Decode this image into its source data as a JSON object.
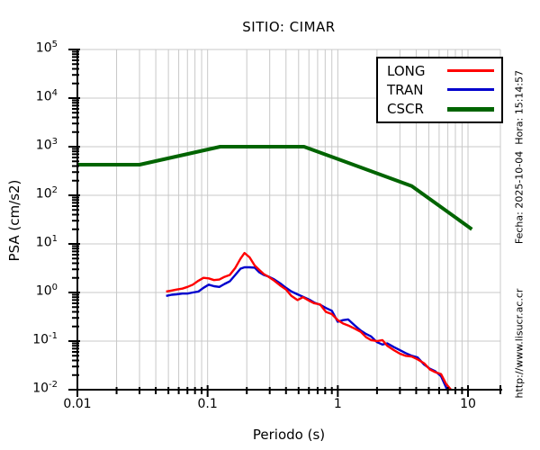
{
  "side_texts": {
    "fecha": "Fecha: 2025-10-04  Hora: 15:14:57",
    "url": "http://www.lisucr.ac.cr"
  },
  "colors": {
    "long": "#ff0000",
    "tran": "#0000cd",
    "cscr": "#006400",
    "grid": "#c8c8c8",
    "axis": "#000000"
  },
  "chart_data": {
    "type": "line",
    "title": "SITIO: CIMAR",
    "xlabel": "Periodo (s)",
    "ylabel": "PSA (cm/s2)",
    "xscale": "log",
    "yscale": "log",
    "xlim": [
      0.01,
      17.8
    ],
    "ylim": [
      0.01,
      100000
    ],
    "x_tick_values": [
      0.01,
      0.1,
      1,
      10
    ],
    "x_tick_labels": [
      "0.01",
      "0.1",
      "1",
      "10"
    ],
    "y_tick_exponents": [
      5,
      4,
      3,
      2,
      1,
      0,
      -1,
      -2
    ],
    "grid": true,
    "legend_position": "top-right",
    "series": [
      {
        "name": "LONG",
        "color": "#ff0000",
        "width": 2.4,
        "points": [
          [
            0.048,
            1.05
          ],
          [
            0.053,
            1.1
          ],
          [
            0.058,
            1.15
          ],
          [
            0.064,
            1.2
          ],
          [
            0.07,
            1.3
          ],
          [
            0.077,
            1.45
          ],
          [
            0.085,
            1.75
          ],
          [
            0.093,
            2.0
          ],
          [
            0.102,
            1.95
          ],
          [
            0.112,
            1.8
          ],
          [
            0.123,
            1.85
          ],
          [
            0.135,
            2.1
          ],
          [
            0.148,
            2.3
          ],
          [
            0.163,
            3.2
          ],
          [
            0.179,
            5.0
          ],
          [
            0.192,
            6.5
          ],
          [
            0.21,
            5.3
          ],
          [
            0.23,
            3.6
          ],
          [
            0.25,
            2.9
          ],
          [
            0.27,
            2.4
          ],
          [
            0.29,
            2.15
          ],
          [
            0.32,
            1.8
          ],
          [
            0.36,
            1.4
          ],
          [
            0.4,
            1.15
          ],
          [
            0.44,
            0.85
          ],
          [
            0.49,
            0.7
          ],
          [
            0.54,
            0.8
          ],
          [
            0.6,
            0.68
          ],
          [
            0.66,
            0.6
          ],
          [
            0.73,
            0.57
          ],
          [
            0.81,
            0.4
          ],
          [
            0.9,
            0.36
          ],
          [
            1.0,
            0.27
          ],
          [
            1.1,
            0.23
          ],
          [
            1.2,
            0.21
          ],
          [
            1.35,
            0.18
          ],
          [
            1.5,
            0.155
          ],
          [
            1.65,
            0.12
          ],
          [
            1.8,
            0.105
          ],
          [
            2.0,
            0.1
          ],
          [
            2.2,
            0.105
          ],
          [
            2.4,
            0.08
          ],
          [
            2.7,
            0.065
          ],
          [
            3.0,
            0.055
          ],
          [
            3.3,
            0.05
          ],
          [
            3.7,
            0.048
          ],
          [
            4.1,
            0.042
          ],
          [
            4.6,
            0.035
          ],
          [
            5.1,
            0.026
          ],
          [
            5.6,
            0.023
          ],
          [
            6.2,
            0.021
          ],
          [
            6.8,
            0.013
          ],
          [
            7.3,
            0.0105
          ],
          [
            7.6,
            0.0092
          ]
        ]
      },
      {
        "name": "TRAN",
        "color": "#0000cd",
        "width": 2.4,
        "points": [
          [
            0.048,
            0.85
          ],
          [
            0.053,
            0.9
          ],
          [
            0.058,
            0.92
          ],
          [
            0.064,
            0.95
          ],
          [
            0.07,
            0.95
          ],
          [
            0.077,
            1.0
          ],
          [
            0.085,
            1.05
          ],
          [
            0.093,
            1.25
          ],
          [
            0.102,
            1.45
          ],
          [
            0.112,
            1.35
          ],
          [
            0.123,
            1.3
          ],
          [
            0.135,
            1.5
          ],
          [
            0.148,
            1.7
          ],
          [
            0.163,
            2.3
          ],
          [
            0.179,
            3.1
          ],
          [
            0.192,
            3.3
          ],
          [
            0.21,
            3.3
          ],
          [
            0.23,
            3.25
          ],
          [
            0.25,
            2.6
          ],
          [
            0.27,
            2.3
          ],
          [
            0.29,
            2.15
          ],
          [
            0.32,
            1.9
          ],
          [
            0.36,
            1.55
          ],
          [
            0.4,
            1.25
          ],
          [
            0.44,
            1.05
          ],
          [
            0.49,
            0.92
          ],
          [
            0.54,
            0.82
          ],
          [
            0.6,
            0.72
          ],
          [
            0.66,
            0.62
          ],
          [
            0.73,
            0.56
          ],
          [
            0.81,
            0.48
          ],
          [
            0.9,
            0.42
          ],
          [
            1.0,
            0.25
          ],
          [
            1.1,
            0.27
          ],
          [
            1.2,
            0.28
          ],
          [
            1.35,
            0.21
          ],
          [
            1.5,
            0.165
          ],
          [
            1.65,
            0.14
          ],
          [
            1.8,
            0.125
          ],
          [
            2.0,
            0.095
          ],
          [
            2.2,
            0.085
          ],
          [
            2.4,
            0.09
          ],
          [
            2.7,
            0.075
          ],
          [
            3.0,
            0.065
          ],
          [
            3.3,
            0.057
          ],
          [
            3.7,
            0.05
          ],
          [
            4.1,
            0.046
          ],
          [
            4.6,
            0.033
          ],
          [
            5.1,
            0.027
          ],
          [
            5.6,
            0.024
          ],
          [
            6.2,
            0.019
          ],
          [
            6.8,
            0.011
          ],
          [
            7.0,
            0.0095
          ]
        ]
      },
      {
        "name": "CSCR",
        "color": "#006400",
        "width": 4,
        "points": [
          [
            0.01,
            427
          ],
          [
            0.03,
            427
          ],
          [
            0.125,
            1000
          ],
          [
            0.55,
            1000
          ],
          [
            3.7,
            155
          ],
          [
            10.7,
            20
          ]
        ]
      }
    ]
  }
}
